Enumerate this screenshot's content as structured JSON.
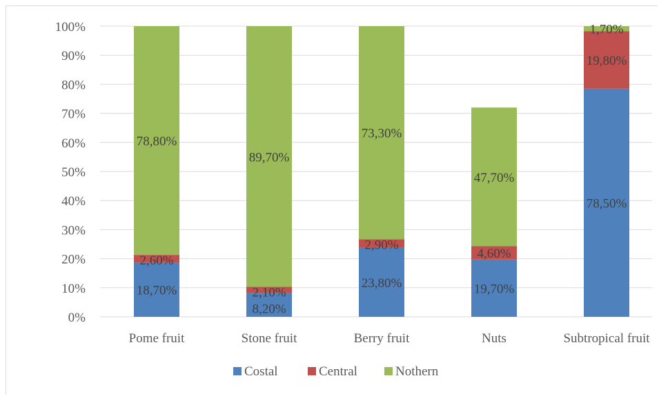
{
  "chart_data": {
    "type": "bar",
    "stacked": true,
    "categories": [
      "Pome fruit",
      "Stone fruit",
      "Berry fruit",
      "Nuts",
      "Subtropical fruit"
    ],
    "series": [
      {
        "name": "Costal",
        "color": "#4f81bd",
        "values": [
          18.7,
          8.2,
          23.8,
          19.7,
          78.5
        ],
        "labels": [
          "18,70%",
          "8,20%",
          "23,80%",
          "19,70%",
          "78,50%"
        ]
      },
      {
        "name": "Central",
        "color": "#c0504d",
        "values": [
          2.6,
          2.1,
          2.9,
          4.6,
          19.8
        ],
        "labels": [
          "2,60%",
          "2,10%",
          "2,90%",
          "4,60%",
          "19,80%"
        ]
      },
      {
        "name": "Nothern",
        "color": "#9bbb59",
        "values": [
          78.8,
          89.7,
          73.3,
          47.7,
          1.7
        ],
        "labels": [
          "78,80%",
          "89,70%",
          "73,30%",
          "47,70%",
          "1,70%"
        ]
      }
    ],
    "yticks": [
      "0%",
      "10%",
      "20%",
      "30%",
      "40%",
      "50%",
      "60%",
      "70%",
      "80%",
      "90%",
      "100%"
    ],
    "ylim": [
      0,
      100
    ],
    "grid": true,
    "legend_position": "bottom"
  }
}
